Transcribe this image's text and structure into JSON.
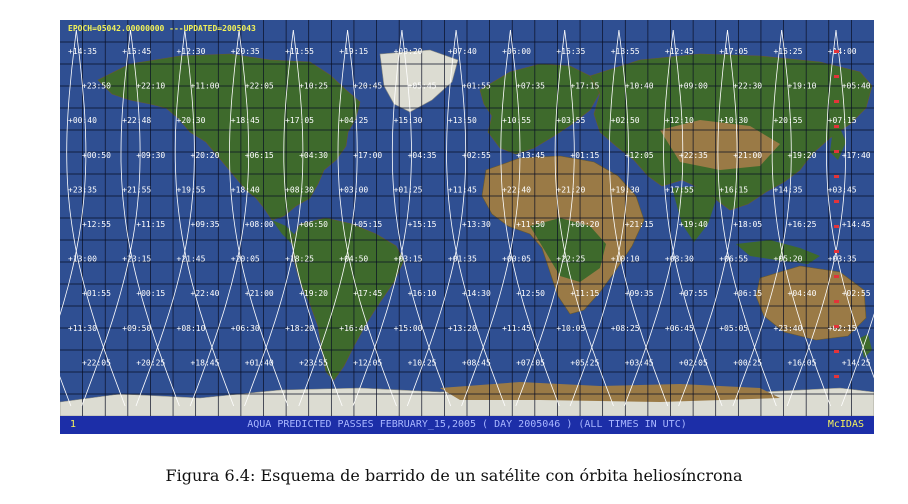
{
  "header": {
    "epoch_text": "EPOCH=05042.00000000 ---UPDATED=2005043"
  },
  "bottom_bar": {
    "left": "1",
    "center": "AQUA PREDICTED PASSES FEBRUARY_15,2005 ( DAY 2005046 ) (ALL TIMES IN UTC)",
    "right": "McIDAS"
  },
  "caption": "Figura 6.4: Esquema de barrido de un satélite con órbita heliosíncrona",
  "colors": {
    "ocean": "#2f4f92",
    "grid": "#0a0f24",
    "track": "#ffffff",
    "land_green": "#3e6a2c",
    "land_brown": "#9a7a46",
    "ice": "#dcdcd2",
    "header_yellow": "#f3f35a",
    "bar_blue": "#1c2ea8"
  },
  "time_labels": [
    "14:35",
    "15:45",
    "12:30",
    "20:35",
    "11:55",
    "19:15",
    "09:20",
    "07:40",
    "06:00",
    "15:35",
    "13:55",
    "12:45",
    "17:05",
    "15:25",
    "14:00",
    "23:50",
    "22:10",
    "11:00",
    "22:05",
    "10:25",
    "20:45",
    "05:45",
    "01:55",
    "07:35",
    "17:15",
    "10:40",
    "09:00",
    "22:30",
    "19:10",
    "05:40",
    "00:40",
    "22:48",
    "20:30",
    "18:45",
    "17:05",
    "04:25",
    "15:30",
    "13:50",
    "10:55",
    "03:55",
    "02:50",
    "12:10",
    "10:30",
    "20:55",
    "07:15",
    "00:50",
    "09:30",
    "20:20",
    "06:15",
    "04:30",
    "17:00",
    "04:35",
    "02:55",
    "13:45",
    "01:15",
    "12:05",
    "22:35",
    "21:00",
    "19:20",
    "17:40",
    "23:35",
    "21:55",
    "19:55",
    "18:40",
    "08:30",
    "03:00",
    "01:25",
    "11:45",
    "22:40",
    "21:20",
    "19:30",
    "17:55",
    "16:15",
    "14:35",
    "03:45",
    "12:55",
    "11:15",
    "09:35",
    "08:00",
    "06:50",
    "05:15",
    "15:15",
    "13:30",
    "11:50",
    "00:20",
    "21:15",
    "19:40",
    "18:05",
    "16:25",
    "14:45",
    "13:00",
    "23:15",
    "21:45",
    "20:05",
    "18:25",
    "04:50",
    "03:15",
    "01:35",
    "00:05",
    "22:25",
    "10:10",
    "08:30",
    "06:55",
    "05:20",
    "03:35",
    "01:55",
    "00:15",
    "22:40",
    "21:00",
    "19:20",
    "17:45",
    "16:10",
    "14:30",
    "12:50",
    "11:15",
    "09:35",
    "07:55",
    "06:15",
    "04:40",
    "02:55",
    "11:30",
    "09:50",
    "08:10",
    "06:30",
    "18:20",
    "16:40",
    "15:00",
    "13:20",
    "11:45",
    "10:05",
    "08:25",
    "06:45",
    "05:05",
    "23:40",
    "02:15",
    "22:05",
    "20:25",
    "18:45",
    "01:40",
    "23:55",
    "12:05",
    "10:25",
    "08:45",
    "07:05",
    "05:25",
    "03:45",
    "02:05",
    "00:25",
    "16:05",
    "14:25"
  ]
}
